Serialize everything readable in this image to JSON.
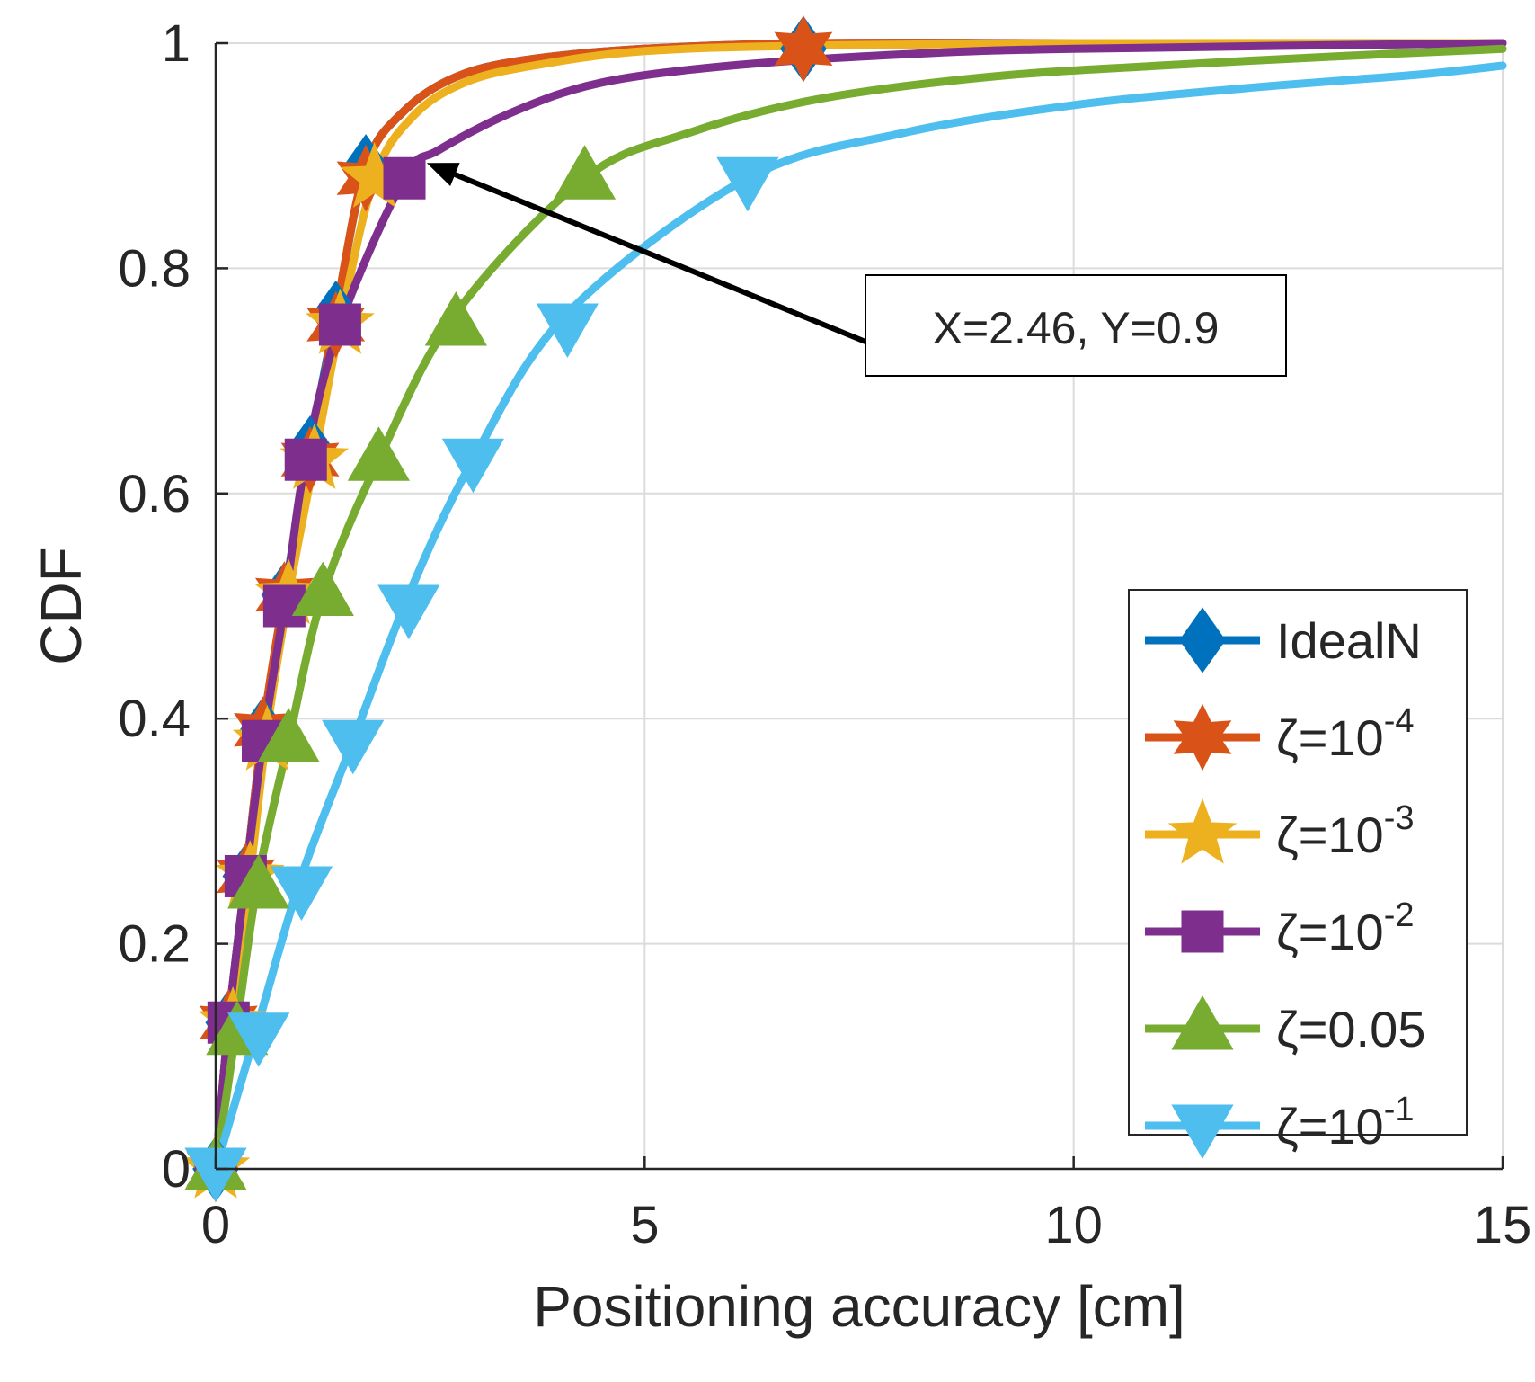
{
  "chart_data": {
    "type": "line",
    "title": "",
    "xlabel": "Positioning accuracy [cm]",
    "ylabel": "CDF",
    "xlim": [
      0,
      15
    ],
    "ylim": [
      0,
      1
    ],
    "xticks": [
      "0",
      "5",
      "10",
      "15"
    ],
    "yticks": [
      "0",
      "0.2",
      "0.4",
      "0.6",
      "0.8",
      "1"
    ],
    "grid": true,
    "legend_position": "bottom-right",
    "series": [
      {
        "name": "IdealN",
        "label_main": "IdealN",
        "label_sup": "",
        "color": "#0072BD",
        "marker": "diamond",
        "x": [
          0,
          0.15,
          0.35,
          0.55,
          0.8,
          1.1,
          1.4,
          1.75,
          2.2,
          2.8,
          3.6,
          5,
          7,
          10,
          15
        ],
        "y": [
          0,
          0.13,
          0.26,
          0.39,
          0.51,
          0.64,
          0.76,
          0.89,
          0.94,
          0.97,
          0.985,
          0.995,
          1.0,
          1.0,
          1.0
        ],
        "marker_x": [
          0,
          0.15,
          0.35,
          0.55,
          0.8,
          1.1,
          1.4,
          1.75,
          6.85
        ],
        "marker_y": [
          0,
          0.13,
          0.26,
          0.39,
          0.51,
          0.64,
          0.76,
          0.89,
          0.995
        ]
      },
      {
        "name": "ζ=10-4",
        "label_main": "ζ=10",
        "label_sup": "-4",
        "color": "#D95319",
        "marker": "hexagram",
        "x": [
          0,
          0.15,
          0.35,
          0.55,
          0.8,
          1.1,
          1.4,
          1.75,
          2.2,
          2.8,
          3.6,
          5,
          7,
          10,
          15
        ],
        "y": [
          0,
          0.13,
          0.26,
          0.39,
          0.51,
          0.63,
          0.76,
          0.89,
          0.94,
          0.97,
          0.985,
          0.995,
          1.0,
          1.0,
          1.0
        ],
        "marker_x": [
          0,
          0.15,
          0.35,
          0.55,
          0.8,
          1.1,
          1.4,
          1.75,
          6.85
        ],
        "marker_y": [
          0,
          0.13,
          0.26,
          0.39,
          0.51,
          0.63,
          0.75,
          0.88,
          0.995
        ]
      },
      {
        "name": "ζ=10-3",
        "label_main": "ζ=10",
        "label_sup": "-3",
        "color": "#EDB120",
        "marker": "pentagram",
        "x": [
          0,
          0.2,
          0.4,
          0.6,
          0.85,
          1.15,
          1.45,
          1.85,
          2.3,
          2.9,
          3.7,
          5,
          7,
          10,
          15
        ],
        "y": [
          0,
          0.13,
          0.26,
          0.39,
          0.51,
          0.63,
          0.75,
          0.88,
          0.935,
          0.965,
          0.98,
          0.993,
          0.998,
          1.0,
          1.0
        ],
        "marker_x": [
          0,
          0.2,
          0.4,
          0.6,
          0.85,
          1.15,
          1.45,
          1.85
        ],
        "marker_y": [
          0,
          0.13,
          0.26,
          0.38,
          0.51,
          0.63,
          0.75,
          0.88
        ]
      },
      {
        "name": "ζ=10-2",
        "label_main": "ζ=10",
        "label_sup": "-2",
        "color": "#7E2F8E",
        "marker": "square",
        "x": [
          0,
          0.15,
          0.35,
          0.55,
          0.8,
          1.05,
          1.45,
          2.2,
          2.6,
          3.5,
          4.5,
          6,
          8,
          10,
          15
        ],
        "y": [
          0,
          0.13,
          0.26,
          0.38,
          0.5,
          0.63,
          0.75,
          0.88,
          0.905,
          0.94,
          0.965,
          0.98,
          0.99,
          0.995,
          1.0
        ],
        "marker_x": [
          0,
          0.15,
          0.35,
          0.55,
          0.8,
          1.05,
          1.45,
          2.2
        ],
        "marker_y": [
          0,
          0.13,
          0.26,
          0.38,
          0.5,
          0.63,
          0.75,
          0.88
        ]
      },
      {
        "name": "ζ=0.05",
        "label_main": "ζ=0.05",
        "label_sup": "",
        "color": "#77AC30",
        "marker": "triangle-up",
        "x": [
          0,
          0.25,
          0.5,
          0.85,
          1.25,
          1.9,
          2.8,
          4.3,
          5.5,
          7,
          9,
          11,
          13,
          15
        ],
        "y": [
          0,
          0.13,
          0.26,
          0.38,
          0.51,
          0.63,
          0.76,
          0.88,
          0.92,
          0.95,
          0.97,
          0.98,
          0.988,
          0.995
        ],
        "marker_x": [
          0,
          0.25,
          0.5,
          0.85,
          1.25,
          1.9,
          2.8,
          4.3
        ],
        "marker_y": [
          0,
          0.12,
          0.25,
          0.38,
          0.51,
          0.63,
          0.75,
          0.88
        ]
      },
      {
        "name": "ζ=10-1",
        "label_main": "ζ=10",
        "label_sup": "-1",
        "color": "#4DBEEE",
        "marker": "triangle-down",
        "x": [
          0,
          0.5,
          1.0,
          1.6,
          2.25,
          3.0,
          4.1,
          6.2,
          8,
          10,
          12,
          14,
          15
        ],
        "y": [
          0,
          0.13,
          0.26,
          0.38,
          0.51,
          0.63,
          0.76,
          0.88,
          0.92,
          0.945,
          0.96,
          0.972,
          0.98
        ],
        "marker_x": [
          0,
          0.5,
          1.0,
          1.6,
          2.25,
          3.0,
          4.1,
          6.2
        ],
        "marker_y": [
          0,
          0.12,
          0.25,
          0.38,
          0.5,
          0.63,
          0.75,
          0.88
        ]
      }
    ],
    "annotation": {
      "text": "X=2.46, Y=0.9",
      "point_x": 2.46,
      "point_y": 0.9
    }
  }
}
